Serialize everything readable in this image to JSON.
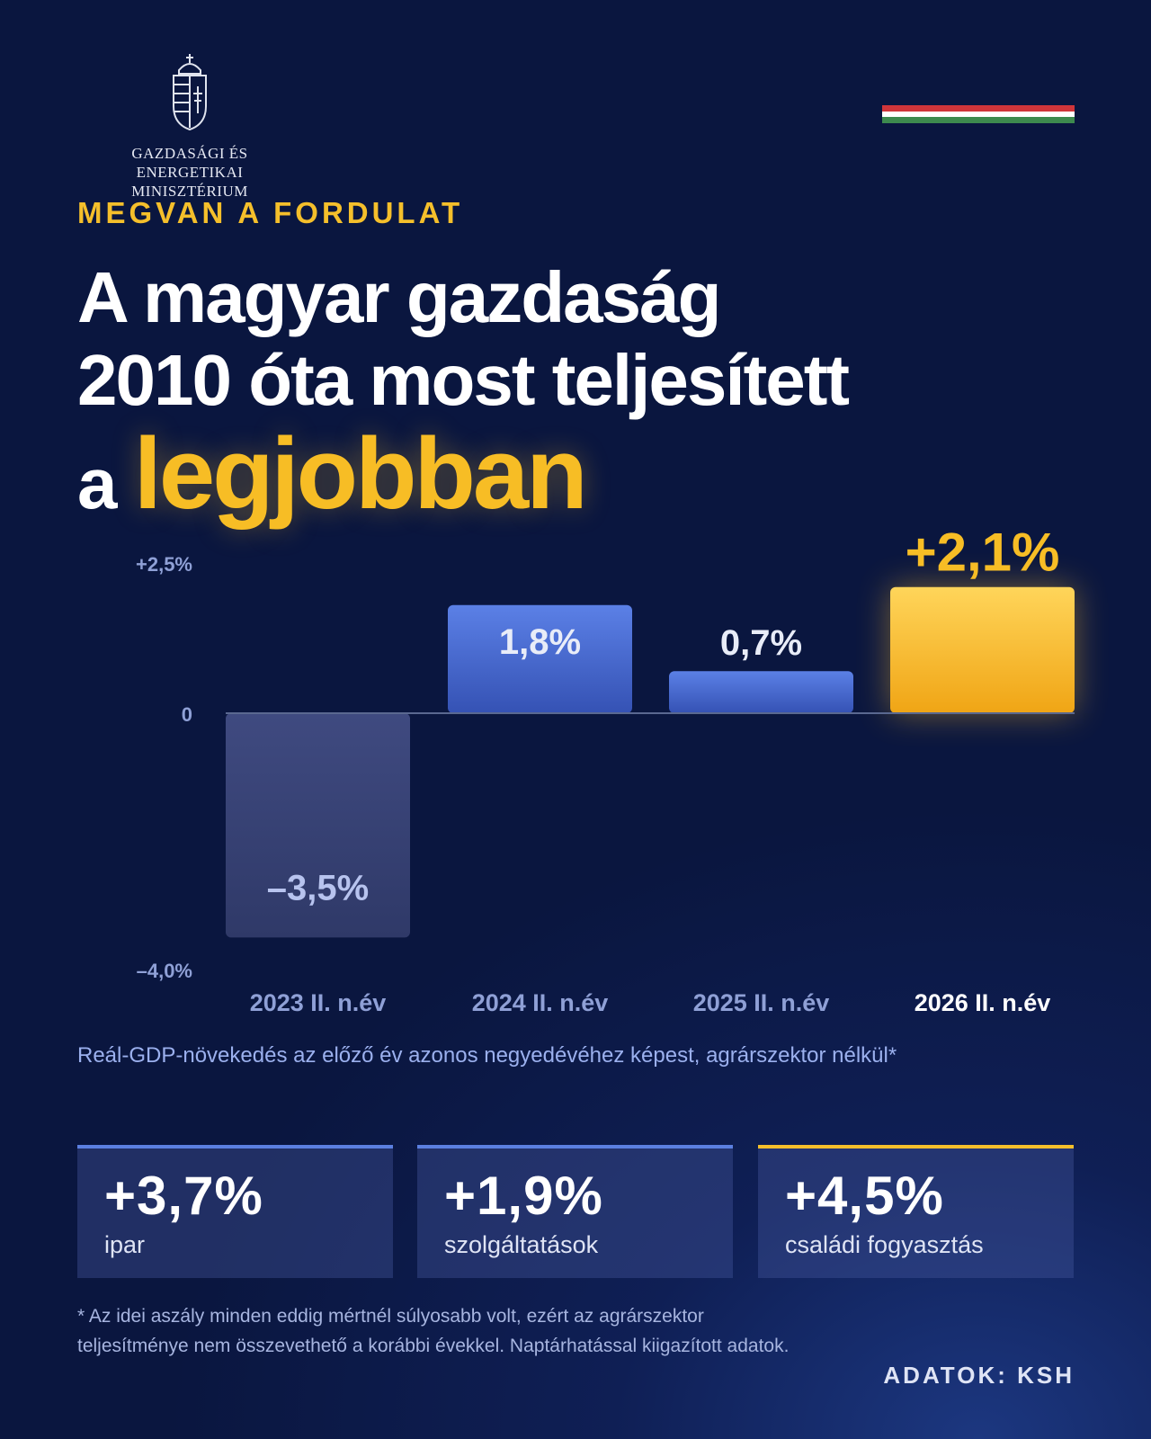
{
  "logo": {
    "org_line1": "Gazdasági és Energetikai",
    "org_line2": "Minisztérium",
    "icon": "hungarian-coat-of-arms-icon"
  },
  "flag_colors": [
    "#d0353a",
    "#ffffff",
    "#3d8a4e"
  ],
  "kicker": "MEGVAN A FORDULAT",
  "headline": {
    "line1": "A magyar gazdaság",
    "line2": "2010 óta most teljesített",
    "line3_prefix": "a",
    "line3_highlight": "legjobban"
  },
  "chart_data": {
    "type": "bar",
    "categories": [
      "2023 II. n.év",
      "2024 II. n.év",
      "2025 II. n.év",
      "2026 II. n.év"
    ],
    "values": [
      -3.5,
      1.8,
      0.7,
      2.1
    ],
    "value_labels": [
      "–3,5%",
      "1,8%",
      "0,7%",
      "+2,1%"
    ],
    "ylim": [
      -4.0,
      2.5
    ],
    "y_ticks": [
      {
        "value": 2.5,
        "label": "+2,5%"
      },
      {
        "value": 0,
        "label": "0"
      },
      {
        "value": -4.0,
        "label": "–4,0%"
      }
    ],
    "highlight_index": 3,
    "colors": {
      "negative": "#3a4478",
      "positive": "#4f72d8",
      "highlight": "#f6b825"
    }
  },
  "subtitle": "Reál-GDP-növekedés az előző év azonos negyedévéhez képest, agrárszektor nélkül*",
  "cards": [
    {
      "value": "+3,7%",
      "label": "ipar"
    },
    {
      "value": "+1,9%",
      "label": "szolgáltatások"
    },
    {
      "value": "+4,5%",
      "label": "családi fogyasztás"
    }
  ],
  "footnote": "* Az idei aszály minden eddig mértnél súlyosabb volt, ezért az agrárszektor teljesítménye nem összevethető a korábbi évekkel. Naptárhatással kiigazított adatok.",
  "source": "ADATOK: KSH"
}
